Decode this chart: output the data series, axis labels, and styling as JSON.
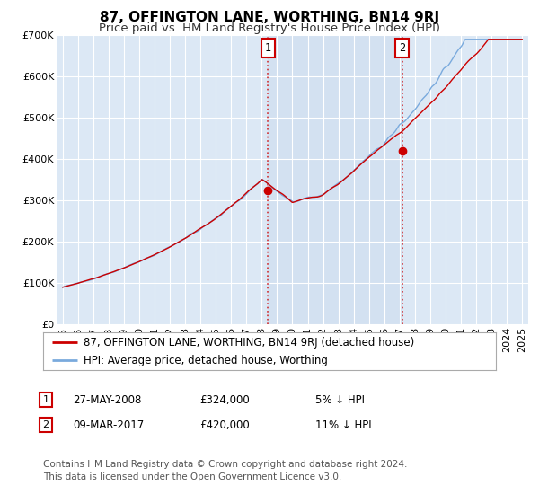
{
  "title": "87, OFFINGTON LANE, WORTHING, BN14 9RJ",
  "subtitle": "Price paid vs. HM Land Registry's House Price Index (HPI)",
  "ylim": [
    0,
    700000
  ],
  "yticks": [
    0,
    100000,
    200000,
    300000,
    400000,
    500000,
    600000,
    700000
  ],
  "ytick_labels": [
    "£0",
    "£100K",
    "£200K",
    "£300K",
    "£400K",
    "£500K",
    "£600K",
    "£700K"
  ],
  "xlim_start": 1994.6,
  "xlim_end": 2025.4,
  "background_color": "#ffffff",
  "plot_bg_color": "#dce8f5",
  "plot_bg_highlight": "#ccdcee",
  "grid_color": "#ffffff",
  "hpi_line_color": "#7aaadd",
  "price_line_color": "#cc0000",
  "transaction1_date": 2008.41,
  "transaction1_price": 324000,
  "transaction1_label": "1",
  "transaction1_display": "27-MAY-2008",
  "transaction1_amount": "£324,000",
  "transaction1_note": "5% ↓ HPI",
  "transaction2_date": 2017.17,
  "transaction2_price": 420000,
  "transaction2_label": "2",
  "transaction2_display": "09-MAR-2017",
  "transaction2_amount": "£420,000",
  "transaction2_note": "11% ↓ HPI",
  "legend_label1": "87, OFFINGTON LANE, WORTHING, BN14 9RJ (detached house)",
  "legend_label2": "HPI: Average price, detached house, Worthing",
  "footnote": "Contains HM Land Registry data © Crown copyright and database right 2024.\nThis data is licensed under the Open Government Licence v3.0.",
  "title_fontsize": 11,
  "subtitle_fontsize": 9.5,
  "tick_fontsize": 8,
  "legend_fontsize": 8.5,
  "footnote_fontsize": 7.5
}
